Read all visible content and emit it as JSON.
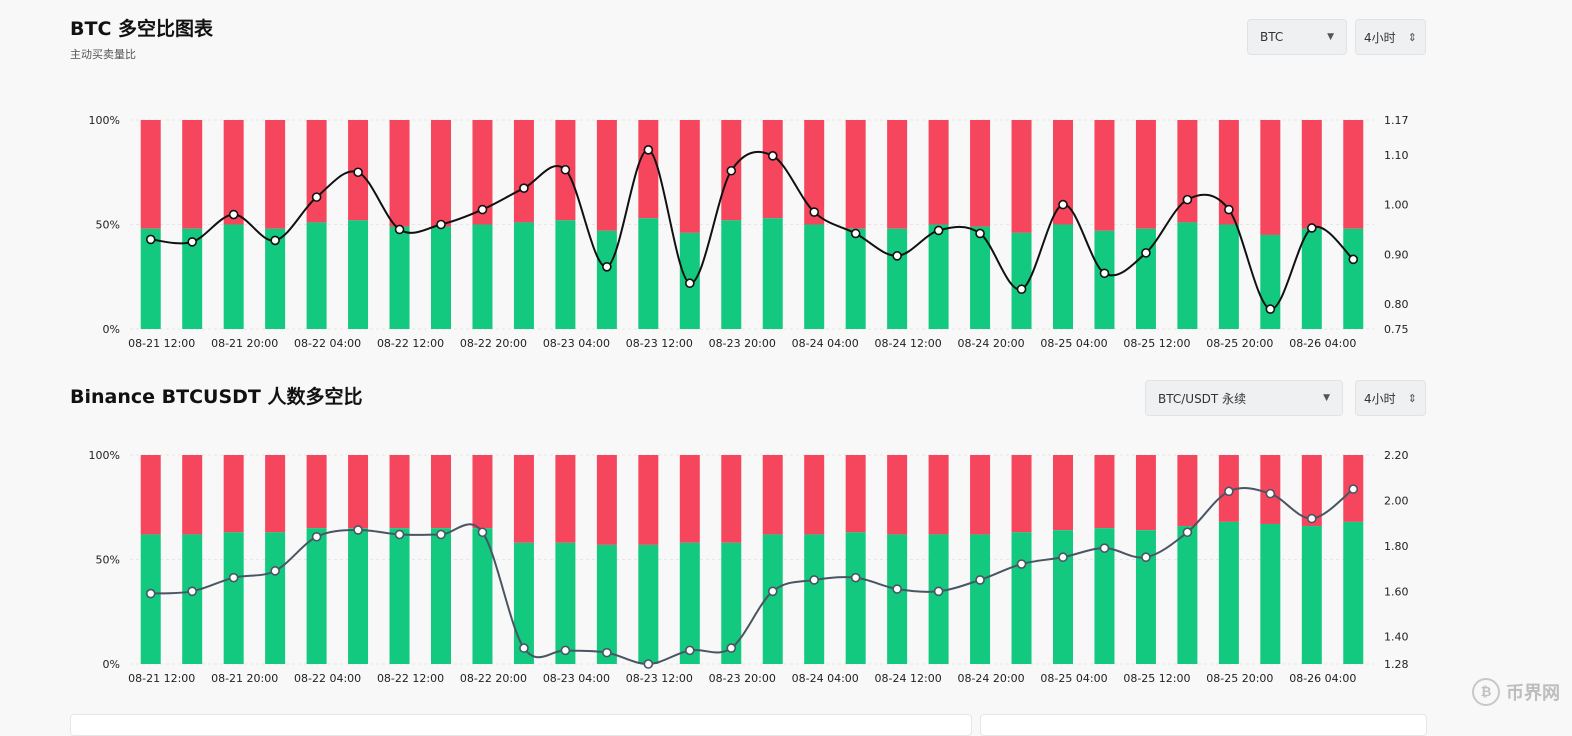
{
  "panel1": {
    "title": "BTC 多空比图表",
    "subtitle": "主动买卖量比",
    "coin_select": "BTC",
    "interval_select": "4小时"
  },
  "panel2": {
    "title": "Binance BTCUSDT 人数多空比",
    "pair_select": "BTC/USDT 永续",
    "interval_select": "4小时"
  },
  "watermark_text": "币界网",
  "colors": {
    "long": "#12c97f",
    "short": "#f6465d",
    "line1": "#111111",
    "line2": "#4a5563",
    "grid": "#e6e6e6"
  },
  "chart_data": [
    {
      "type": "bar",
      "stacked_percent": true,
      "x_tick_labels": [
        "08-21 12:00",
        "08-21 20:00",
        "08-22 04:00",
        "08-22 12:00",
        "08-22 20:00",
        "08-23 04:00",
        "08-23 12:00",
        "08-23 20:00",
        "08-24 04:00",
        "08-24 12:00",
        "08-24 20:00",
        "08-25 04:00",
        "08-25 12:00",
        "08-25 20:00",
        "08-26 04:00"
      ],
      "y_left_ticks": [
        "0%",
        "50%",
        "100%"
      ],
      "y_right_ticks": [
        "0.75",
        "0.80",
        "0.90",
        "1.00",
        "1.10",
        "1.17"
      ],
      "y_right_lim": [
        0.75,
        1.17
      ],
      "long_pct": [
        48,
        48,
        50,
        48,
        51,
        52,
        49,
        49,
        50,
        51,
        52,
        47,
        53,
        46,
        52,
        53,
        50,
        48,
        48,
        50,
        49,
        46,
        50,
        47,
        48,
        51,
        50,
        45,
        48,
        48
      ],
      "ratio": [
        0.93,
        0.925,
        0.98,
        0.928,
        1.015,
        1.065,
        0.95,
        0.96,
        0.99,
        1.033,
        1.07,
        0.875,
        1.11,
        0.842,
        1.068,
        1.098,
        0.985,
        0.942,
        0.897,
        0.948,
        0.942,
        0.83,
        1.0,
        0.862,
        0.903,
        1.01,
        0.99,
        0.79,
        0.953,
        0.89
      ]
    },
    {
      "type": "bar",
      "stacked_percent": true,
      "x_tick_labels": [
        "08-21 12:00",
        "08-21 20:00",
        "08-22 04:00",
        "08-22 12:00",
        "08-22 20:00",
        "08-23 04:00",
        "08-23 12:00",
        "08-23 20:00",
        "08-24 04:00",
        "08-24 12:00",
        "08-24 20:00",
        "08-25 04:00",
        "08-25 12:00",
        "08-25 20:00",
        "08-26 04:00"
      ],
      "y_left_ticks": [
        "0%",
        "50%",
        "100%"
      ],
      "y_right_ticks": [
        "1.28",
        "1.40",
        "1.60",
        "1.80",
        "2.00",
        "2.20"
      ],
      "y_right_lim": [
        1.28,
        2.2
      ],
      "long_pct": [
        62,
        62,
        63,
        63,
        65,
        65,
        65,
        65,
        65,
        58,
        58,
        57,
        57,
        58,
        58,
        62,
        62,
        63,
        62,
        62,
        62,
        63,
        64,
        65,
        64,
        66,
        68,
        67,
        66,
        68
      ],
      "ratio": [
        1.59,
        1.6,
        1.66,
        1.69,
        1.84,
        1.87,
        1.85,
        1.85,
        1.86,
        1.35,
        1.34,
        1.33,
        1.28,
        1.34,
        1.35,
        1.6,
        1.65,
        1.66,
        1.61,
        1.6,
        1.65,
        1.72,
        1.75,
        1.79,
        1.75,
        1.86,
        2.04,
        2.03,
        1.92,
        2.05
      ]
    }
  ]
}
